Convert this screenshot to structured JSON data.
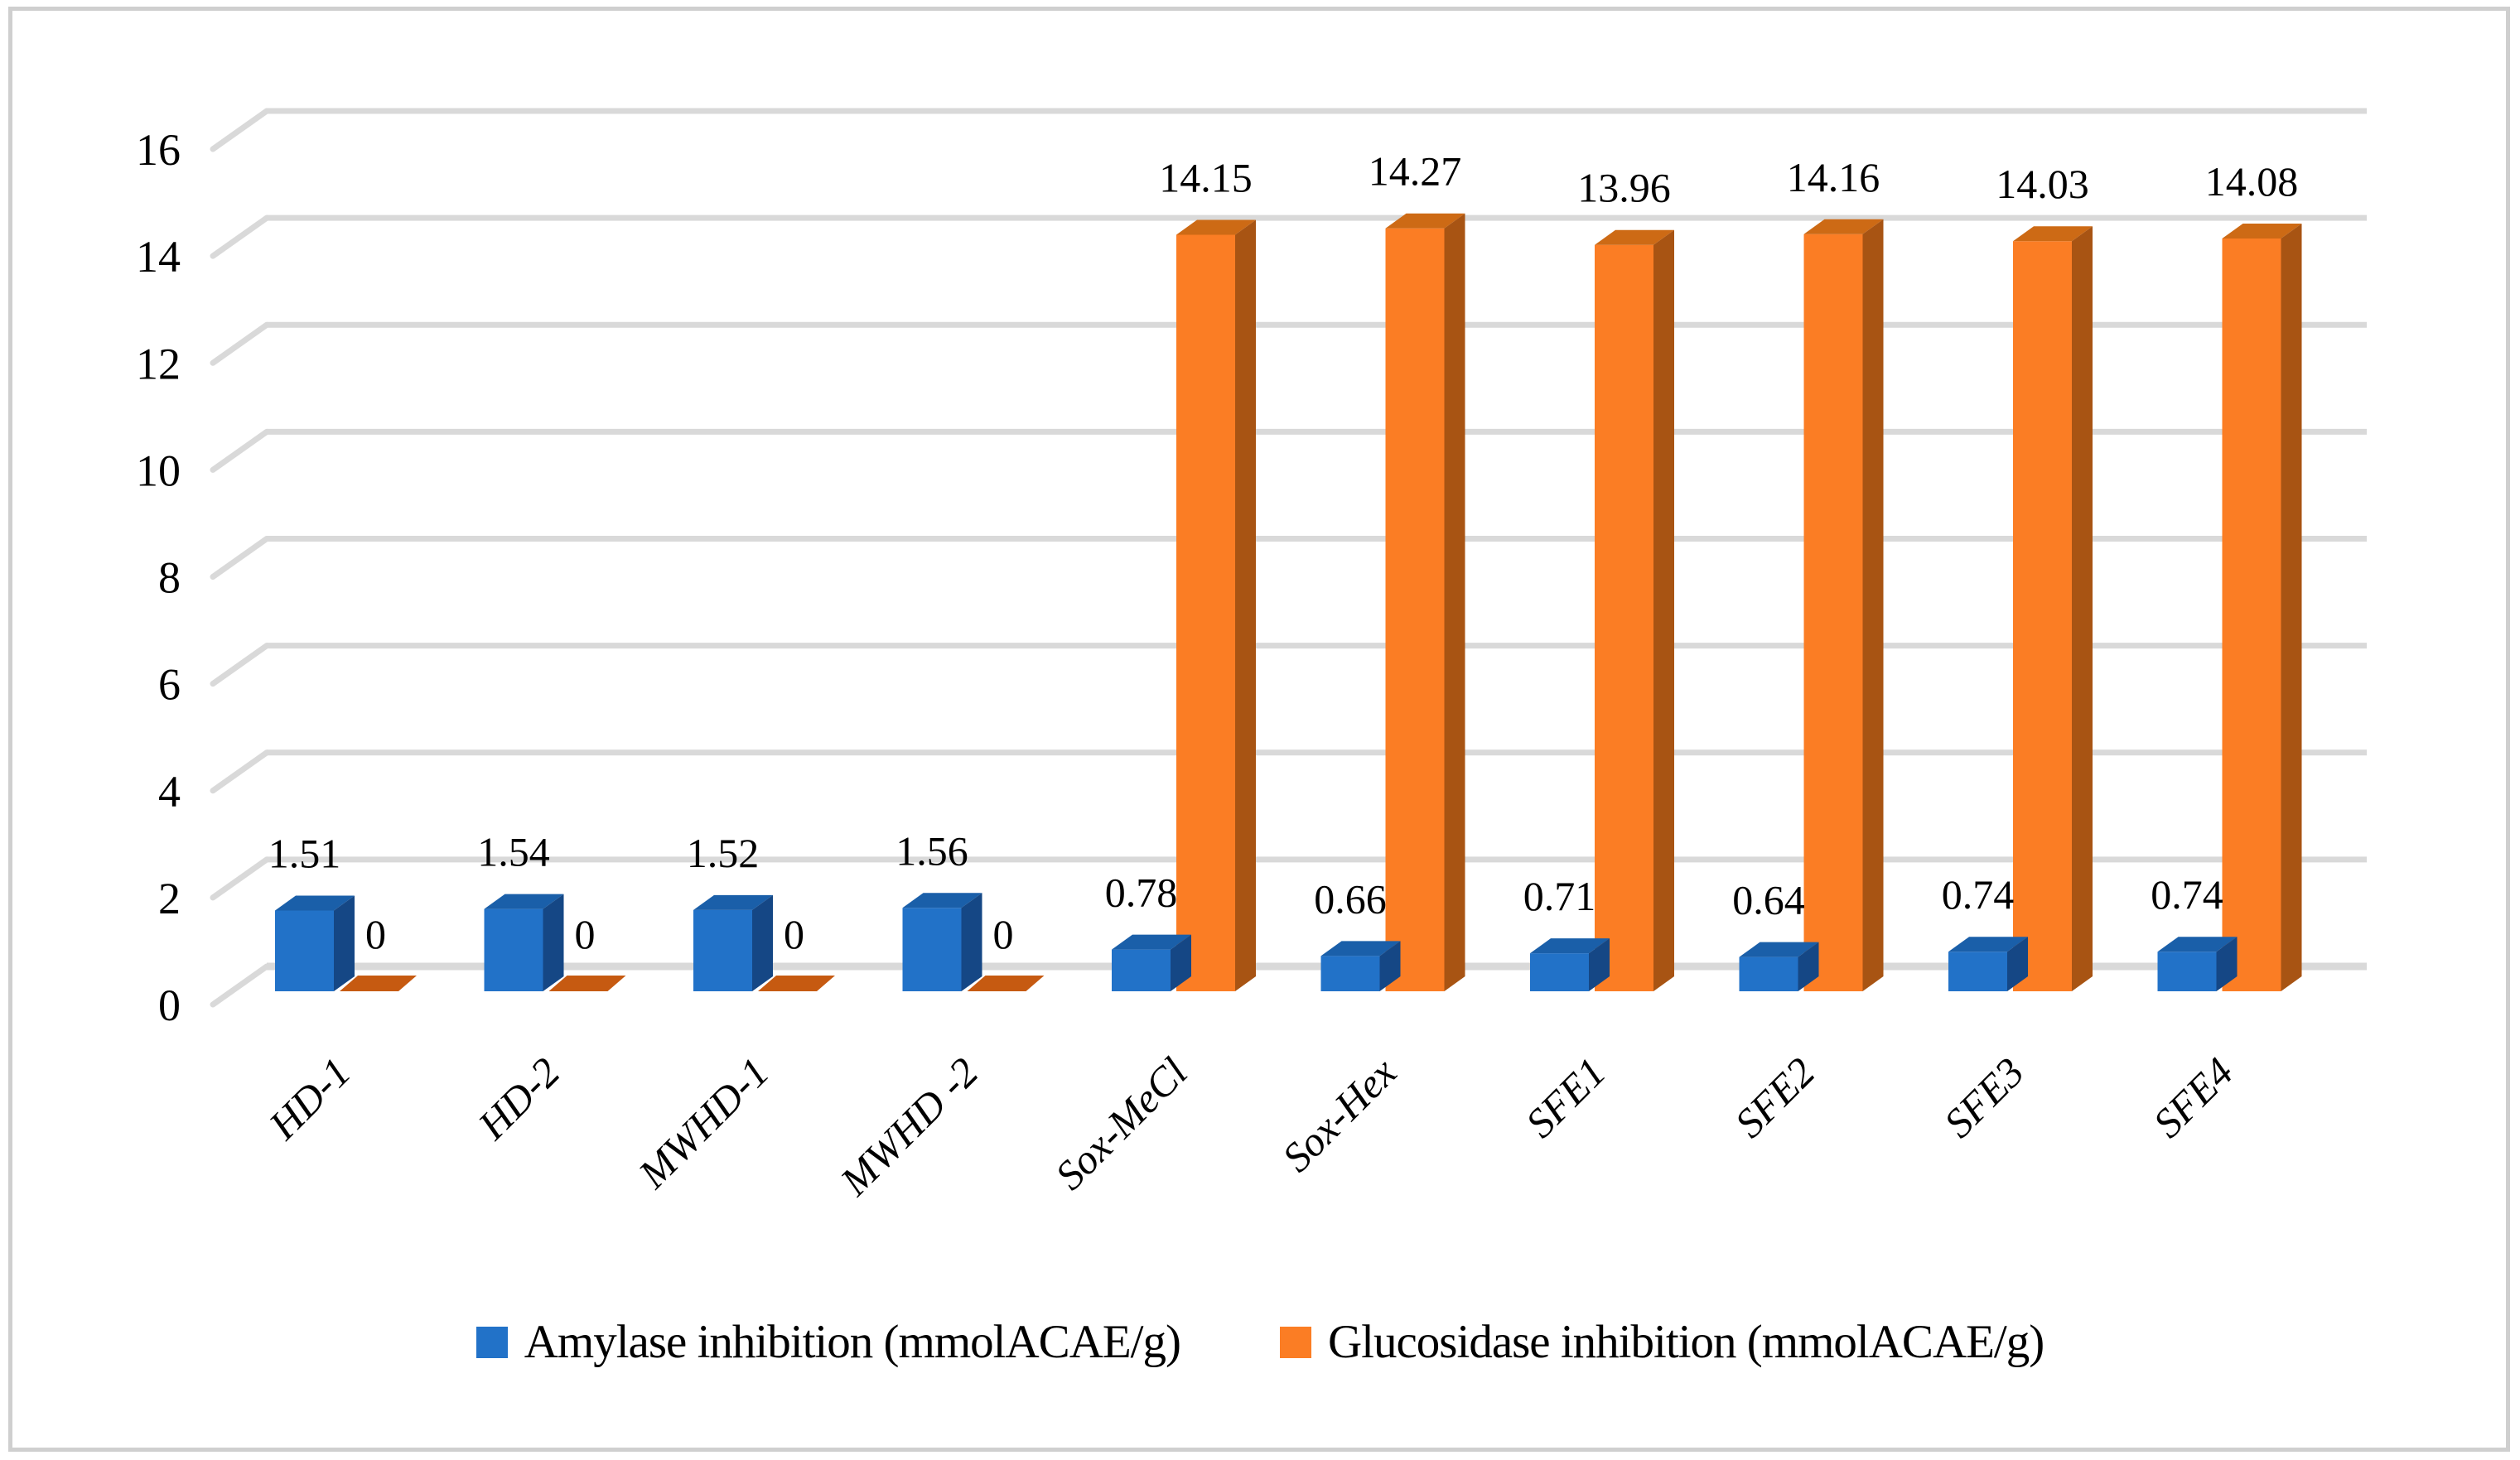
{
  "figure": {
    "background": "#FFFFFF",
    "frame_color": "#CFCFCF",
    "gridline_color": "#D9D9D9",
    "text_color": "#000000"
  },
  "chart_data": {
    "type": "bar",
    "projection": "3d",
    "title": "",
    "xlabel": "",
    "ylabel": "",
    "categories": [
      "HD-1",
      "HD-2",
      "MWHD-1",
      "MWHD -2",
      "Sox-MeCl",
      "Sox-Hex",
      "SFE1",
      "SFE2",
      "SFE3",
      "SFE4"
    ],
    "series": [
      {
        "name": "Amylase inhibition (mmolACAE/g)",
        "color_front": "#2272C8",
        "color_top": "#1A5FA9",
        "color_side": "#154785",
        "values": [
          1.51,
          1.54,
          1.52,
          1.56,
          0.78,
          0.66,
          0.71,
          0.64,
          0.74,
          0.74
        ],
        "labels": [
          "1.51",
          "1.54",
          "1.52",
          "1.56",
          "0.78",
          "0.66",
          "0.71",
          "0.64",
          "0.74",
          "0.74"
        ]
      },
      {
        "name": "Glucosidase inhibition (mmolACAE/g)",
        "color_front": "#FB7D24",
        "color_top": "#CD6A15",
        "color_side": "#A85413",
        "color_zero_tile": "#C65A11",
        "values": [
          0,
          0,
          0,
          0,
          14.15,
          14.27,
          13.96,
          14.16,
          14.03,
          14.08
        ],
        "labels": [
          "0",
          "0",
          "0",
          "0",
          "14.15",
          "14.27",
          "13.96",
          "14.16",
          "14.03",
          "14.08"
        ]
      }
    ],
    "y_axis": {
      "min": 0,
      "max": 16,
      "step": 2,
      "tick_labels": [
        "0",
        "2",
        "4",
        "6",
        "8",
        "10",
        "12",
        "14",
        "16"
      ]
    },
    "legend_position": "bottom",
    "gridlines": true
  }
}
